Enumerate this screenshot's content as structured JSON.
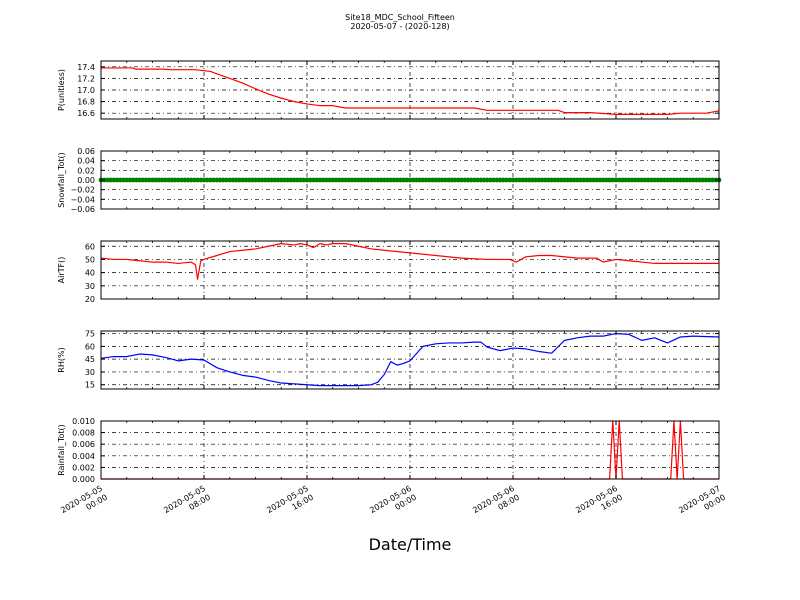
{
  "title": "Site18_MDC_School_Fifteen",
  "subtitle": "2020-05-07 - (2020-128)",
  "xlabel": "Date/Time",
  "x_ticks": [
    {
      "l1": "2020-05-05",
      "l2": "00:00"
    },
    {
      "l1": "2020-05-05",
      "l2": "08:00"
    },
    {
      "l1": "2020-05-05",
      "l2": "16:00"
    },
    {
      "l1": "2020-05-06",
      "l2": "00:00"
    },
    {
      "l1": "2020-05-06",
      "l2": "08:00"
    },
    {
      "l1": "2020-05-06",
      "l2": "16:00"
    },
    {
      "l1": "2020-05-07",
      "l2": "00:00"
    }
  ],
  "chart_data": [
    {
      "type": "line",
      "ylabel": "P(unitless)",
      "ylim": [
        16.5,
        17.5
      ],
      "yticks": [
        "17.4",
        "17.2",
        "17.0",
        "16.8",
        "16.6"
      ],
      "ytick_values": [
        17.4,
        17.2,
        17.0,
        16.8,
        16.6
      ],
      "grid": true,
      "series": [
        {
          "color": "#ff0000",
          "x": [
            "2020-05-05 00:00",
            "2020-05-05 02:30",
            "2020-05-05 02:40",
            "2020-05-05 04:50",
            "2020-05-05 05:20",
            "2020-05-05 06:00",
            "2020-05-05 07:20",
            "2020-05-05 08:30",
            "2020-05-05 09:00",
            "2020-05-05 10:00",
            "2020-05-05 11:00",
            "2020-05-05 12:00",
            "2020-05-05 13:00",
            "2020-05-05 14:00",
            "2020-05-05 15:00",
            "2020-05-05 16:00",
            "2020-05-05 17:00",
            "2020-05-05 18:00",
            "2020-05-05 19:00",
            "2020-05-06 00:00",
            "2020-05-06 03:00",
            "2020-05-06 05:00",
            "2020-05-06 06:00",
            "2020-05-06 08:00",
            "2020-05-06 10:00",
            "2020-05-06 11:30",
            "2020-05-06 12:00",
            "2020-05-06 14:00",
            "2020-05-06 16:00",
            "2020-05-06 19:00",
            "2020-05-06 20:00",
            "2020-05-06 21:00",
            "2020-05-06 23:00",
            "2020-05-07 00:00"
          ],
          "y": [
            17.38,
            17.38,
            17.36,
            17.36,
            17.35,
            17.35,
            17.35,
            17.32,
            17.28,
            17.2,
            17.12,
            17.02,
            16.93,
            16.86,
            16.8,
            16.76,
            16.73,
            16.73,
            16.69,
            16.69,
            16.69,
            16.69,
            16.65,
            16.65,
            16.65,
            16.65,
            16.61,
            16.61,
            16.58,
            16.58,
            16.58,
            16.6,
            16.6,
            16.64
          ]
        }
      ]
    },
    {
      "type": "scatter",
      "ylabel": "Snowfall_Tot()",
      "ylim": [
        -0.06,
        0.06
      ],
      "yticks": [
        "0.06",
        "0.04",
        "0.02",
        "0.00",
        "−0.02",
        "−0.04",
        "−0.06"
      ],
      "ytick_values": [
        0.06,
        0.04,
        0.02,
        0.0,
        -0.02,
        -0.04,
        -0.06
      ],
      "grid": true,
      "series": [
        {
          "color": "#008000",
          "x_start": "2020-05-05 00:00",
          "x_end": "2020-05-07 00:00",
          "interval_minutes": 15,
          "value": 0.0
        }
      ]
    },
    {
      "type": "line",
      "ylabel": "AirTF()",
      "ylim": [
        20,
        64
      ],
      "yticks": [
        "60",
        "50",
        "40",
        "30",
        "20"
      ],
      "ytick_values": [
        60,
        50,
        40,
        30,
        20
      ],
      "grid": true,
      "series": [
        {
          "color": "#ff0000",
          "x": [
            "2020-05-05 00:00",
            "2020-05-05 01:00",
            "2020-05-05 02:00",
            "2020-05-05 03:00",
            "2020-05-05 04:00",
            "2020-05-05 05:00",
            "2020-05-05 06:00",
            "2020-05-05 07:00",
            "2020-05-05 07:20",
            "2020-05-05 07:30",
            "2020-05-05 07:45",
            "2020-05-05 08:00",
            "2020-05-05 09:00",
            "2020-05-05 10:00",
            "2020-05-05 11:00",
            "2020-05-05 12:00",
            "2020-05-05 13:00",
            "2020-05-05 14:00",
            "2020-05-05 15:00",
            "2020-05-05 15:30",
            "2020-05-05 16:00",
            "2020-05-05 16:30",
            "2020-05-05 17:00",
            "2020-05-05 17:30",
            "2020-05-05 18:00",
            "2020-05-05 19:00",
            "2020-05-05 20:00",
            "2020-05-05 21:00",
            "2020-05-05 22:00",
            "2020-05-06 00:00",
            "2020-05-06 02:00",
            "2020-05-06 04:00",
            "2020-05-06 06:00",
            "2020-05-06 07:45",
            "2020-05-06 08:00",
            "2020-05-06 08:15",
            "2020-05-06 09:00",
            "2020-05-06 10:00",
            "2020-05-06 11:00",
            "2020-05-06 13:00",
            "2020-05-06 14:30",
            "2020-05-06 15:00",
            "2020-05-06 15:30",
            "2020-05-06 16:00",
            "2020-05-06 17:00",
            "2020-05-06 18:00",
            "2020-05-06 19:00",
            "2020-05-06 20:00",
            "2020-05-06 22:00",
            "2020-05-07 00:00"
          ],
          "y": [
            51,
            50,
            50,
            49,
            48,
            48,
            47,
            48,
            46,
            35,
            49,
            50,
            53,
            56,
            57,
            58,
            60,
            62,
            61,
            62,
            61,
            59,
            62,
            61,
            62,
            62,
            60,
            58,
            57,
            55,
            53,
            51,
            50,
            50,
            49,
            48,
            52,
            53,
            53,
            51,
            51,
            48,
            49,
            50,
            49,
            48,
            47,
            47,
            47,
            47
          ]
        }
      ]
    },
    {
      "type": "line",
      "ylabel": "RH(%)",
      "ylim": [
        10,
        78
      ],
      "yticks": [
        "75",
        "60",
        "45",
        "30",
        "15"
      ],
      "ytick_values": [
        75,
        60,
        45,
        30,
        15
      ],
      "grid": true,
      "series": [
        {
          "color": "#0000ff",
          "x": [
            "2020-05-05 00:00",
            "2020-05-05 01:00",
            "2020-05-05 02:00",
            "2020-05-05 03:00",
            "2020-05-05 04:00",
            "2020-05-05 05:00",
            "2020-05-05 06:00",
            "2020-05-05 07:00",
            "2020-05-05 08:00",
            "2020-05-05 09:00",
            "2020-05-05 10:00",
            "2020-05-05 11:00",
            "2020-05-05 12:00",
            "2020-05-05 13:00",
            "2020-05-05 14:00",
            "2020-05-05 15:00",
            "2020-05-05 16:00",
            "2020-05-05 17:00",
            "2020-05-05 18:00",
            "2020-05-05 19:00",
            "2020-05-05 20:00",
            "2020-05-05 21:00",
            "2020-05-05 21:30",
            "2020-05-05 22:00",
            "2020-05-05 22:30",
            "2020-05-05 23:00",
            "2020-05-05 23:30",
            "2020-05-06 00:00",
            "2020-05-06 01:00",
            "2020-05-06 02:00",
            "2020-05-06 03:00",
            "2020-05-06 04:00",
            "2020-05-06 05:00",
            "2020-05-06 05:30",
            "2020-05-06 06:00",
            "2020-05-06 07:00",
            "2020-05-06 08:00",
            "2020-05-06 09:00",
            "2020-05-06 10:00",
            "2020-05-06 11:00",
            "2020-05-06 12:00",
            "2020-05-06 13:00",
            "2020-05-06 14:00",
            "2020-05-06 15:00",
            "2020-05-06 16:00",
            "2020-05-06 17:00",
            "2020-05-06 18:00",
            "2020-05-06 19:00",
            "2020-05-06 20:00",
            "2020-05-06 21:00",
            "2020-05-06 22:00",
            "2020-05-07 00:00"
          ],
          "y": [
            46,
            48,
            48,
            51,
            50,
            47,
            43,
            45,
            44,
            35,
            30,
            26,
            24,
            20,
            17,
            16,
            15,
            14,
            14,
            14,
            14,
            15,
            18,
            27,
            42,
            38,
            40,
            43,
            60,
            63,
            64,
            64,
            65,
            65,
            59,
            55,
            58,
            57,
            54,
            52,
            67,
            70,
            72,
            72,
            75,
            74,
            67,
            70,
            64,
            71,
            72,
            71
          ]
        }
      ]
    },
    {
      "type": "line",
      "ylabel": "Rainfall_Tot()",
      "ylim": [
        0,
        0.01
      ],
      "yticks": [
        "0.010",
        "0.008",
        "0.006",
        "0.004",
        "0.002",
        "0.000"
      ],
      "ytick_values": [
        0.01,
        0.008,
        0.006,
        0.004,
        0.002,
        0.0
      ],
      "grid": true,
      "series": [
        {
          "color": "#ff0000",
          "x": [
            "2020-05-05 00:00",
            "2020-05-06 15:30",
            "2020-05-06 15:45",
            "2020-05-06 16:00",
            "2020-05-06 16:15",
            "2020-05-06 16:30",
            "2020-05-06 20:15",
            "2020-05-06 20:30",
            "2020-05-06 20:45",
            "2020-05-06 21:00",
            "2020-05-06 21:15",
            "2020-05-07 00:00"
          ],
          "y": [
            0,
            0,
            0.01,
            0,
            0.01,
            0,
            0,
            0.01,
            0,
            0.01,
            0,
            0
          ]
        }
      ]
    }
  ]
}
